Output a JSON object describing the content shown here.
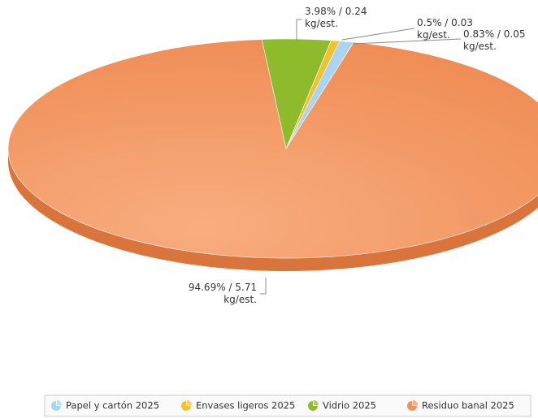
{
  "chart_data": {
    "type": "pie",
    "categories": [
      "Papel y cartón 2025",
      "Envases ligeros 2025",
      "Vidrio 2025",
      "Residuo banal 2025"
    ],
    "values": [
      0.83,
      0.5,
      3.98,
      94.69
    ],
    "value_labels": [
      "0.83% / 0.05 kg/est.",
      "0.5% / 0.03 kg/est.",
      "3.98% / 0.24 kg/est.",
      "94.69% / 5.71 kg/est."
    ],
    "colors": [
      "#aad4f2",
      "#f3c12e",
      "#8dbb2b",
      "#f0925c"
    ],
    "legend": "bottom"
  }
}
